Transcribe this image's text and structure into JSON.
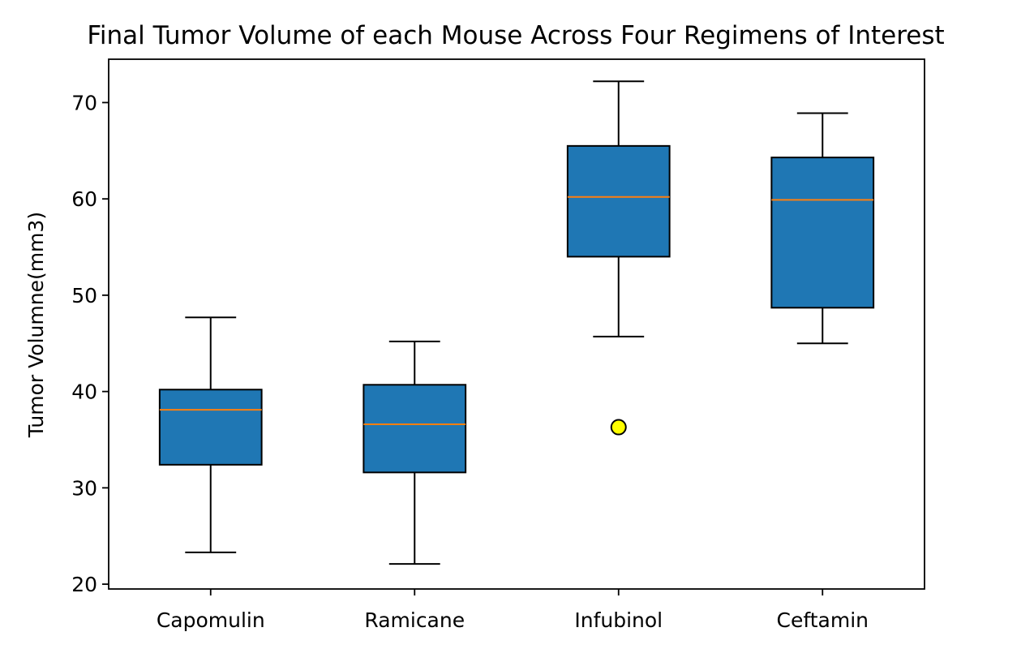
{
  "chart_data": {
    "type": "box",
    "title": "Final Tumor Volume of each Mouse Across Four Regimens of Interest",
    "xlabel": "",
    "ylabel": "Tumor Volumne(mm3)",
    "ylim": [
      19.5,
      74.5
    ],
    "yticks": [
      20,
      30,
      40,
      50,
      60,
      70
    ],
    "grid": false,
    "categories": [
      "Capomulin",
      "Ramicane",
      "Infubinol",
      "Ceftamin"
    ],
    "boxes": [
      {
        "category": "Capomulin",
        "whisker_low": 23.3,
        "q1": 32.4,
        "median": 38.1,
        "q3": 40.2,
        "whisker_high": 47.7,
        "outliers": []
      },
      {
        "category": "Ramicane",
        "whisker_low": 22.1,
        "q1": 31.6,
        "median": 36.6,
        "q3": 40.7,
        "whisker_high": 45.2,
        "outliers": []
      },
      {
        "category": "Infubinol",
        "whisker_low": 45.7,
        "q1": 54.0,
        "median": 60.2,
        "q3": 65.5,
        "whisker_high": 72.2,
        "outliers": [
          36.3
        ]
      },
      {
        "category": "Ceftamin",
        "whisker_low": 45.0,
        "q1": 48.7,
        "median": 59.9,
        "q3": 64.3,
        "whisker_high": 68.9,
        "outliers": []
      }
    ],
    "colors": {
      "box_fill": "#1f77b4",
      "median": "#ff7f0e",
      "whisker": "#000000",
      "outlier_fill": "#ffff00",
      "outlier_edge": "#000000"
    }
  }
}
